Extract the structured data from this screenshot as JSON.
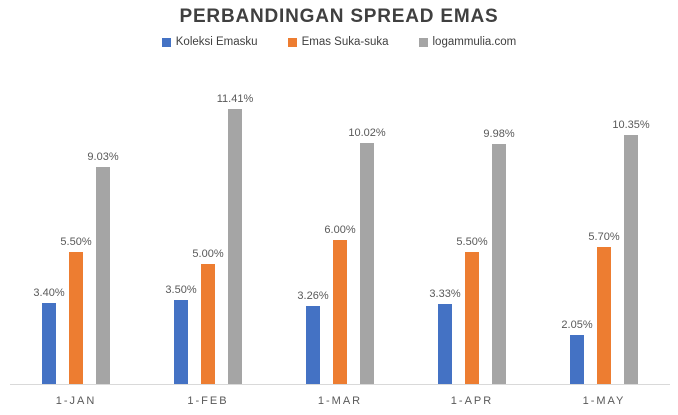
{
  "chart_data": {
    "type": "bar",
    "title": "PERBANDINGAN SPREAD EMAS",
    "categories": [
      "1-JAN",
      "1-FEB",
      "1-MAR",
      "1-APR",
      "1-MAY"
    ],
    "series": [
      {
        "name": "Koleksi Emasku",
        "color": "#4472C4",
        "values": [
          3.4,
          3.5,
          3.26,
          3.33,
          2.05
        ],
        "labels": [
          "3.40%",
          "3.50%",
          "3.26%",
          "3.33%",
          "2.05%"
        ]
      },
      {
        "name": "Emas Suka-suka",
        "color": "#ED7D31",
        "values": [
          5.5,
          5.0,
          6.0,
          5.5,
          5.7
        ],
        "labels": [
          "5.50%",
          "5.00%",
          "6.00%",
          "5.50%",
          "5.70%"
        ]
      },
      {
        "name": "logammulia.com",
        "color": "#A5A5A5",
        "values": [
          9.03,
          11.41,
          10.02,
          9.98,
          10.35
        ],
        "labels": [
          "9.03%",
          "11.41%",
          "10.02%",
          "9.98%",
          "10.35%"
        ]
      }
    ],
    "xlabel": "",
    "ylabel": "",
    "ylim": [
      0,
      12
    ],
    "grid": false,
    "legend_position": "top",
    "data_labels": true,
    "axis_line_color": "#D9D9D9",
    "text_color": "#595959",
    "title_color": "#404040"
  }
}
